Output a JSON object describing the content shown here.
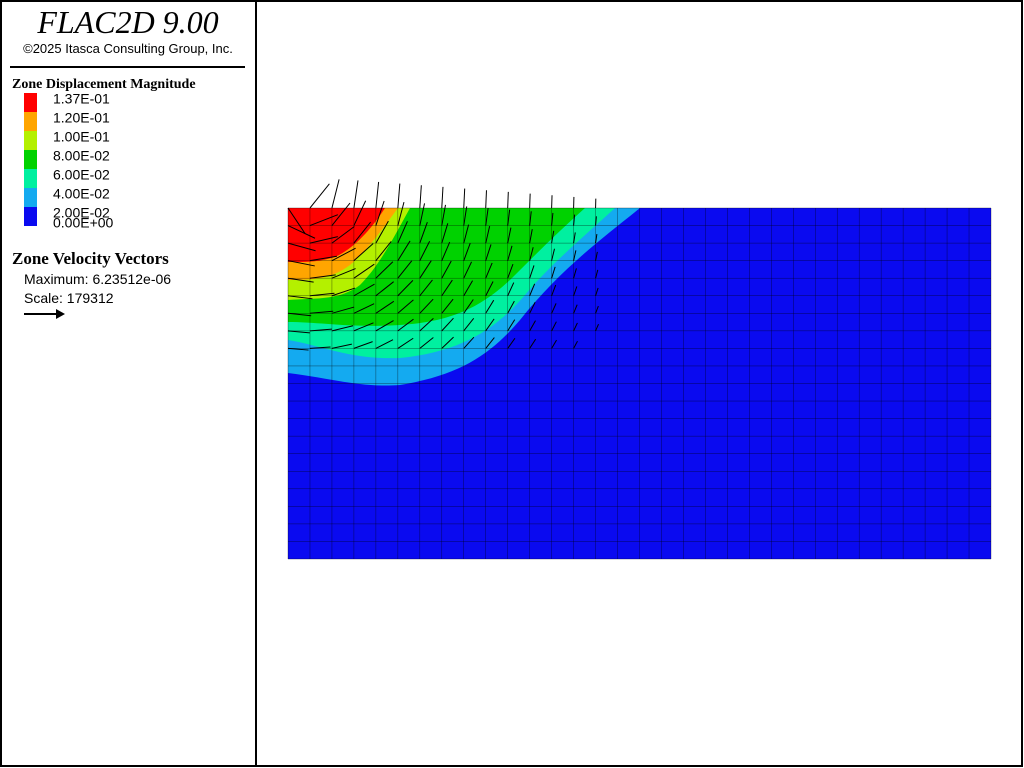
{
  "header": {
    "title": "FLAC2D 9.00",
    "copyright": "©2025 Itasca Consulting Group, Inc."
  },
  "legend": {
    "title": "Zone Displacement Magnitude",
    "items": [
      {
        "label": "1.37E-01",
        "color": "#ff0000"
      },
      {
        "label": "1.20E-01",
        "color": "#ffa500"
      },
      {
        "label": "1.00E-01",
        "color": "#b4f000"
      },
      {
        "label": "8.00E-02",
        "color": "#00d200"
      },
      {
        "label": "6.00E-02",
        "color": "#00f0a0"
      },
      {
        "label": "4.00E-02",
        "color": "#14aaf0"
      },
      {
        "label": "2.00E-02",
        "color": "#0a0af0"
      }
    ],
    "last_label": "0.00E+00"
  },
  "vectors": {
    "title": "Zone Velocity Vectors",
    "maximum": "Maximum: 6.23512e-06",
    "scale": "Scale: 179312"
  }
}
